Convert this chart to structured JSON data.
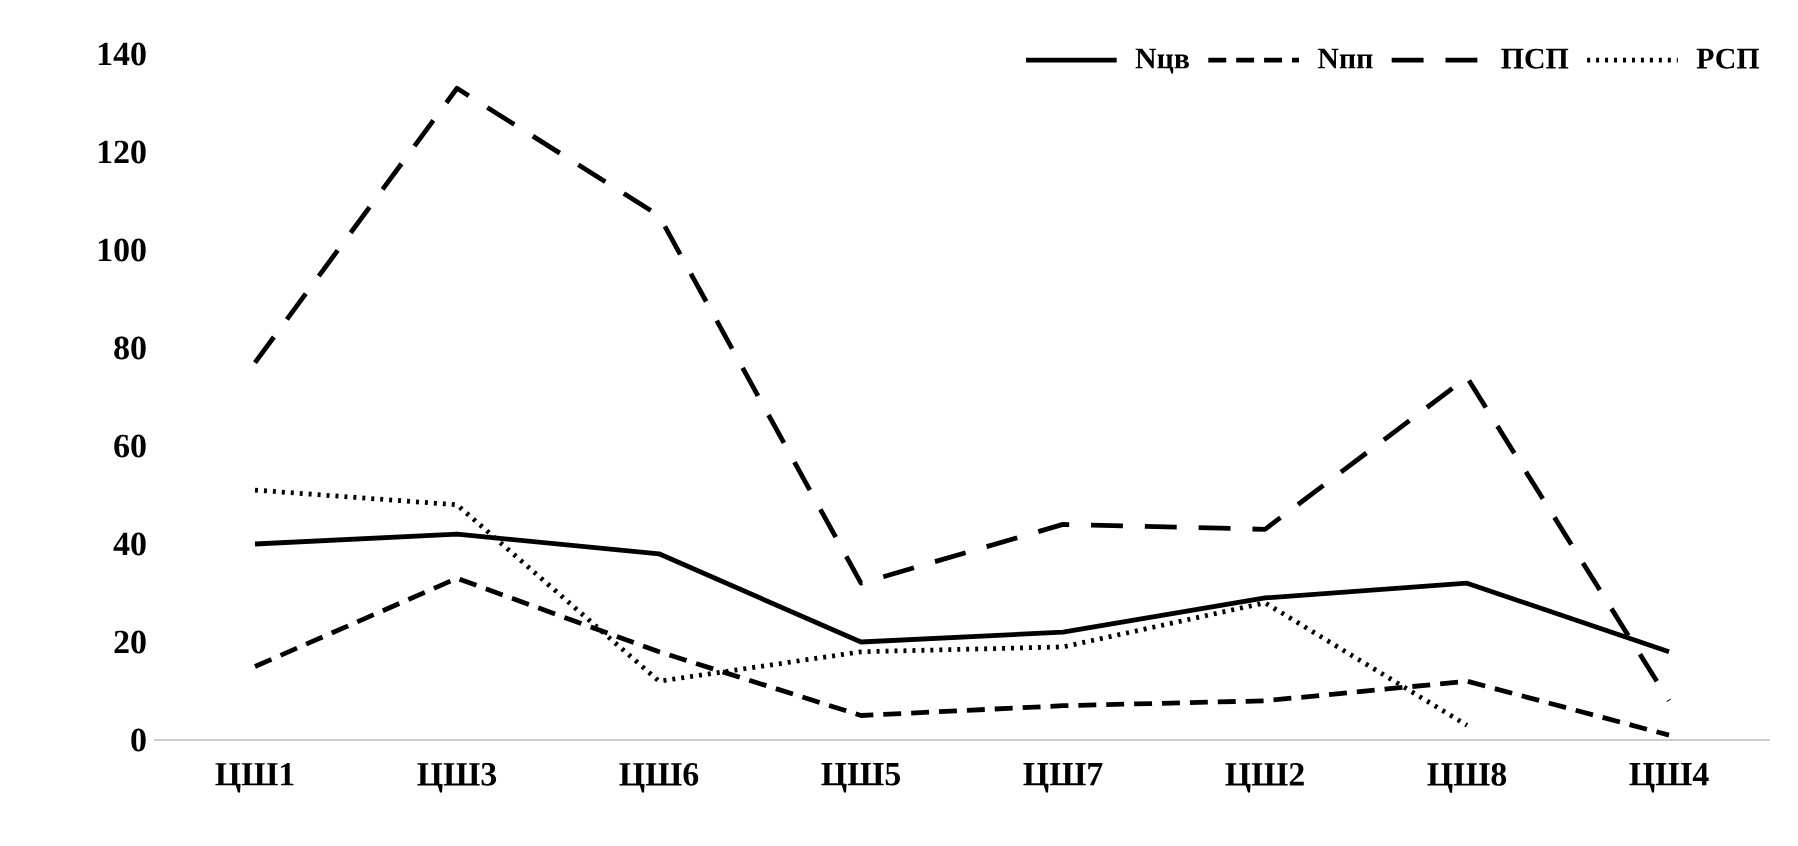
{
  "chart_data": {
    "type": "line",
    "categories": [
      "ЦШ1",
      "ЦШ3",
      "ЦШ6",
      "ЦШ5",
      "ЦШ7",
      "ЦШ2",
      "ЦШ8",
      "ЦШ4"
    ],
    "series": [
      {
        "name": "Nцв",
        "color": "#000000",
        "line_style": "solid",
        "values": [
          40,
          42,
          38,
          20,
          22,
          29,
          32,
          18
        ]
      },
      {
        "name": "Nпп",
        "color": "#000000",
        "line_style": "dashed",
        "values": [
          15,
          33,
          18,
          5,
          7,
          8,
          12,
          1
        ]
      },
      {
        "name": "ПСП",
        "color": "#000000",
        "line_style": "longdashed",
        "values": [
          77,
          133,
          107,
          32,
          44,
          43,
          74,
          8
        ]
      },
      {
        "name": "РСП",
        "color": "#000000",
        "line_style": "dotted",
        "values": [
          51,
          48,
          12,
          18,
          19,
          28,
          3,
          null
        ]
      }
    ],
    "ylim": [
      0,
      140
    ],
    "yticks": [
      0,
      20,
      40,
      60,
      80,
      100,
      120,
      140
    ],
    "legend": "top right",
    "grid": false,
    "marker": "none"
  }
}
